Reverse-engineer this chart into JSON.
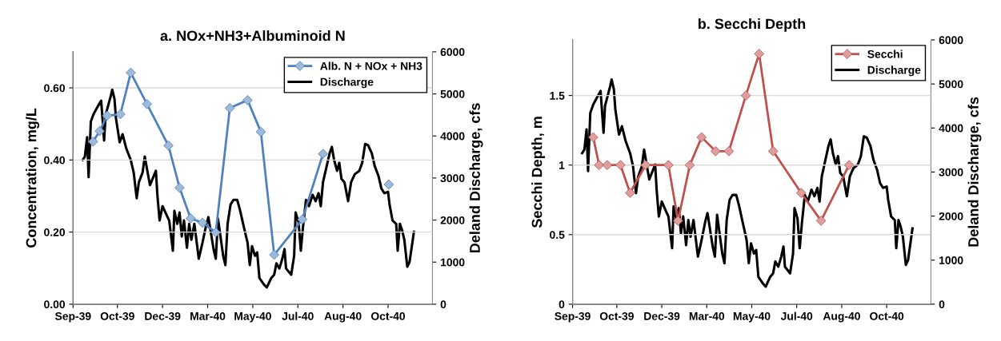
{
  "chart_data": [
    {
      "type": "line",
      "title": "a. NOx+NH3+Albuminoid N",
      "ylabel": "Concentration, mg/L",
      "y2label": "Deland Discharge, cfs",
      "xlim": [
        "1939-09-01",
        "1940-12-30"
      ],
      "xticks": [
        {
          "value": "1939-09-01",
          "label": "Sep-39"
        },
        {
          "value": "1939-10-31",
          "label": "Oct-39"
        },
        {
          "value": "1939-12-31",
          "label": "Dec-39"
        },
        {
          "value": "1940-03-01",
          "label": "Mar-40"
        },
        {
          "value": "1940-05-01",
          "label": "May-40"
        },
        {
          "value": "1940-07-01",
          "label": "Jul-40"
        },
        {
          "value": "1940-08-31",
          "label": "Aug-40"
        },
        {
          "value": "1940-10-31",
          "label": "Oct-40"
        }
      ],
      "ylim": [
        0,
        0.7
      ],
      "yticks": [
        {
          "value": 0,
          "label": "0.00"
        },
        {
          "value": 0.2,
          "label": "0.20"
        },
        {
          "value": 0.4,
          "label": "0.40"
        },
        {
          "value": 0.6,
          "label": "0.60"
        }
      ],
      "y2lim": [
        0,
        6000
      ],
      "y2ticks": [
        0,
        1000,
        2000,
        3000,
        4000,
        5000,
        6000
      ],
      "grid": "y",
      "legend": "top right",
      "series": [
        {
          "name": "Discharge",
          "axis": "y2",
          "color": "#000000",
          "marker": "none",
          "x": [
            "1939-09-14",
            "1939-09-17",
            "1939-09-20",
            "1939-09-22",
            "1939-09-25",
            "1939-09-29",
            "1939-10-04",
            "1939-10-09",
            "1939-10-13",
            "1939-10-15",
            "1939-10-22",
            "1939-10-24",
            "1939-10-27",
            "1939-10-29",
            "1939-11-03",
            "1939-11-07",
            "1939-11-12",
            "1939-11-18",
            "1939-11-22",
            "1939-11-26",
            "1939-11-29",
            "1939-12-04",
            "1939-12-07",
            "1939-12-10",
            "1939-12-14",
            "1939-12-22",
            "1939-12-24",
            "1939-12-27",
            "1939-12-31",
            "1940-01-06",
            "1940-01-09",
            "1940-01-14",
            "1940-01-16",
            "1940-01-20",
            "1940-01-23",
            "1940-01-26",
            "1940-01-29",
            "1940-02-02",
            "1940-02-05",
            "1940-02-08",
            "1940-02-12",
            "1940-02-18",
            "1940-02-20",
            "1940-02-23",
            "1940-02-28",
            "1940-03-02",
            "1940-03-09",
            "1940-03-12",
            "1940-03-15",
            "1940-03-22",
            "1940-03-25",
            "1940-03-28",
            "1940-04-01",
            "1940-04-05",
            "1940-04-10",
            "1940-04-14",
            "1940-04-18",
            "1940-04-24",
            "1940-04-27",
            "1940-04-30",
            "1940-05-04",
            "1940-05-07",
            "1940-05-10",
            "1940-05-16",
            "1940-05-20",
            "1940-05-26",
            "1940-05-30",
            "1940-06-02",
            "1940-06-06",
            "1940-06-10",
            "1940-06-13",
            "1940-06-15",
            "1940-06-22",
            "1940-06-26",
            "1940-06-28",
            "1940-07-02",
            "1940-07-05",
            "1940-07-08",
            "1940-07-12",
            "1940-07-16",
            "1940-07-21",
            "1940-07-25",
            "1940-07-29",
            "1940-08-01",
            "1940-08-04",
            "1940-08-13",
            "1940-08-16",
            "1940-08-19",
            "1940-08-23",
            "1940-08-26",
            "1940-08-29",
            "1940-09-02",
            "1940-09-07",
            "1940-09-11",
            "1940-09-16",
            "1940-09-22",
            "1940-09-26",
            "1940-09-30",
            "1940-10-04",
            "1940-10-09",
            "1940-10-13",
            "1940-10-18",
            "1940-10-22",
            "1940-10-26",
            "1940-10-31",
            "1940-11-02",
            "1940-11-06",
            "1940-11-11",
            "1940-11-13",
            "1940-11-16",
            "1940-11-19",
            "1940-11-22",
            "1940-11-26",
            "1940-11-29",
            "1940-12-05"
          ],
          "values": [
            3430,
            3510,
            3970,
            3020,
            4340,
            4530,
            4690,
            4840,
            3890,
            4500,
            4950,
            5100,
            4880,
            4420,
            3850,
            4040,
            3700,
            3430,
            3130,
            2520,
            2900,
            3130,
            3510,
            3210,
            2830,
            3170,
            2600,
            1990,
            2330,
            2100,
            1990,
            1270,
            2220,
            1910,
            2180,
            1610,
            1990,
            1340,
            1910,
            1530,
            1910,
            1080,
            1230,
            1460,
            1880,
            2070,
            1310,
            1080,
            2030,
            1150,
            930,
            1910,
            2370,
            2480,
            2480,
            2220,
            1910,
            1460,
            930,
            1380,
            1150,
            1230,
            620,
            470,
            400,
            620,
            700,
            970,
            850,
            1080,
            1310,
            850,
            700,
            1150,
            2180,
            1950,
            1270,
            1840,
            2480,
            2330,
            2600,
            2450,
            2640,
            2330,
            2900,
            3590,
            3740,
            3430,
            3170,
            3360,
            2980,
            2900,
            2450,
            2900,
            3090,
            3170,
            3360,
            3810,
            3780,
            3590,
            3280,
            3050,
            2750,
            2640,
            2670,
            2370,
            1990,
            1910,
            1270,
            1910,
            1760,
            1530,
            890,
            1000,
            1720
          ]
        },
        {
          "name": "Alb. N + NOx + NH3",
          "color": "#4f81bd",
          "marker": "diamond",
          "x": [
            "1939-09-28",
            "1939-10-07",
            "1939-10-17",
            "1939-11-04",
            "1939-11-18",
            "1939-12-10",
            "1940-01-08",
            "1940-01-23",
            "1940-02-07",
            "1940-02-23",
            "1940-03-12",
            "1940-03-31",
            "1940-04-24",
            "1940-05-12",
            "1940-05-30",
            "1940-07-07",
            "1940-08-04",
            "1940-09-17",
            "1940-11-01"
          ],
          "values": [
            0.451,
            0.48,
            0.523,
            0.527,
            0.642,
            0.555,
            0.44,
            0.323,
            0.238,
            0.226,
            0.199,
            0.544,
            0.566,
            0.478,
            0.137,
            0.235,
            0.417,
            null,
            0.332
          ]
        }
      ]
    },
    {
      "type": "line",
      "title": "b. Secchi Depth",
      "ylabel": "Secchi Depth, m",
      "y2label": "Deland Discharge, cfs",
      "xlim": [
        "1939-09-01",
        "1940-12-30"
      ],
      "xticks": [
        {
          "value": "1939-09-01",
          "label": "Sep-39"
        },
        {
          "value": "1939-10-31",
          "label": "Oct-39"
        },
        {
          "value": "1939-12-31",
          "label": "Dec-39"
        },
        {
          "value": "1940-03-01",
          "label": "Mar-40"
        },
        {
          "value": "1940-05-01",
          "label": "May-40"
        },
        {
          "value": "1940-07-01",
          "label": "Jul-40"
        },
        {
          "value": "1940-08-31",
          "label": "Aug-40"
        },
        {
          "value": "1940-10-31",
          "label": "Oct-40"
        }
      ],
      "ylim": [
        0,
        1.9
      ],
      "yticks": [
        0,
        0.5,
        1,
        1.5
      ],
      "y2lim": [
        0,
        6000
      ],
      "y2ticks": [
        0,
        1000,
        2000,
        3000,
        4000,
        5000,
        6000
      ],
      "grid": "y",
      "legend": "top right",
      "series": [
        {
          "name": "Discharge",
          "axis": "y2",
          "color": "#000000",
          "marker": "none",
          "x": [
            "1939-09-14",
            "1939-09-17",
            "1939-09-20",
            "1939-09-22",
            "1939-09-25",
            "1939-09-29",
            "1939-10-04",
            "1939-10-09",
            "1939-10-13",
            "1939-10-15",
            "1939-10-22",
            "1939-10-24",
            "1939-10-27",
            "1939-10-29",
            "1939-11-03",
            "1939-11-07",
            "1939-11-12",
            "1939-11-18",
            "1939-11-22",
            "1939-11-26",
            "1939-11-29",
            "1939-12-04",
            "1939-12-07",
            "1939-12-10",
            "1939-12-14",
            "1939-12-22",
            "1939-12-24",
            "1939-12-27",
            "1939-12-31",
            "1940-01-06",
            "1940-01-09",
            "1940-01-14",
            "1940-01-16",
            "1940-01-20",
            "1940-01-23",
            "1940-01-26",
            "1940-01-29",
            "1940-02-02",
            "1940-02-05",
            "1940-02-08",
            "1940-02-12",
            "1940-02-18",
            "1940-02-20",
            "1940-02-23",
            "1940-02-28",
            "1940-03-02",
            "1940-03-09",
            "1940-03-12",
            "1940-03-15",
            "1940-03-22",
            "1940-03-25",
            "1940-03-28",
            "1940-04-01",
            "1940-04-05",
            "1940-04-10",
            "1940-04-14",
            "1940-04-18",
            "1940-04-24",
            "1940-04-27",
            "1940-04-30",
            "1940-05-04",
            "1940-05-07",
            "1940-05-10",
            "1940-05-16",
            "1940-05-20",
            "1940-05-26",
            "1940-05-30",
            "1940-06-02",
            "1940-06-06",
            "1940-06-10",
            "1940-06-13",
            "1940-06-15",
            "1940-06-22",
            "1940-06-26",
            "1940-06-28",
            "1940-07-02",
            "1940-07-05",
            "1940-07-08",
            "1940-07-12",
            "1940-07-16",
            "1940-07-21",
            "1940-07-25",
            "1940-07-29",
            "1940-08-01",
            "1940-08-04",
            "1940-08-13",
            "1940-08-16",
            "1940-08-19",
            "1940-08-23",
            "1940-08-26",
            "1940-08-29",
            "1940-09-02",
            "1940-09-07",
            "1940-09-11",
            "1940-09-16",
            "1940-09-22",
            "1940-09-26",
            "1940-09-30",
            "1940-10-04",
            "1940-10-09",
            "1940-10-13",
            "1940-10-18",
            "1940-10-22",
            "1940-10-26",
            "1940-10-31",
            "1940-11-02",
            "1940-11-06",
            "1940-11-11",
            "1940-11-13",
            "1940-11-16",
            "1940-11-19",
            "1940-11-22",
            "1940-11-26",
            "1940-11-29",
            "1940-12-05"
          ],
          "values": [
            3430,
            3510,
            3970,
            3020,
            4340,
            4530,
            4690,
            4840,
            3890,
            4500,
            4950,
            5100,
            4880,
            4420,
            3850,
            4040,
            3700,
            3430,
            3130,
            2520,
            2900,
            3130,
            3510,
            3210,
            2830,
            3170,
            2600,
            1990,
            2330,
            2100,
            1990,
            1270,
            2220,
            1910,
            2180,
            1610,
            1990,
            1340,
            1910,
            1530,
            1910,
            1080,
            1230,
            1460,
            1880,
            2070,
            1310,
            1080,
            2030,
            1150,
            930,
            1910,
            2370,
            2480,
            2480,
            2220,
            1910,
            1460,
            930,
            1380,
            1150,
            1230,
            620,
            470,
            400,
            620,
            700,
            970,
            850,
            1080,
            1310,
            850,
            700,
            1150,
            2180,
            1950,
            1270,
            1840,
            2480,
            2330,
            2600,
            2450,
            2640,
            2330,
            2900,
            3590,
            3740,
            3430,
            3170,
            3360,
            2980,
            2900,
            2450,
            2900,
            3090,
            3170,
            3360,
            3810,
            3780,
            3590,
            3280,
            3050,
            2750,
            2640,
            2670,
            2370,
            1990,
            1910,
            1270,
            1910,
            1760,
            1530,
            890,
            1000,
            1720
          ]
        },
        {
          "name": "Secchi",
          "color": "#c0504d",
          "marker": "diamond",
          "x": [
            "1939-09-29",
            "1939-10-07",
            "1939-10-18",
            "1939-11-05",
            "1939-11-18",
            "1939-12-09",
            "1940-01-09",
            "1940-01-22",
            "1940-02-07",
            "1940-02-23",
            "1940-03-13",
            "1940-03-31",
            "1940-04-23",
            "1940-05-11",
            "1940-05-30",
            "1940-07-07",
            "1940-08-03",
            "1940-09-10"
          ],
          "values": [
            1.2,
            1.0,
            1.0,
            1.0,
            0.8,
            1.0,
            1.0,
            0.6,
            1.0,
            1.2,
            1.1,
            1.1,
            1.5,
            1.8,
            1.1,
            0.8,
            0.6,
            1.0
          ]
        }
      ]
    }
  ]
}
